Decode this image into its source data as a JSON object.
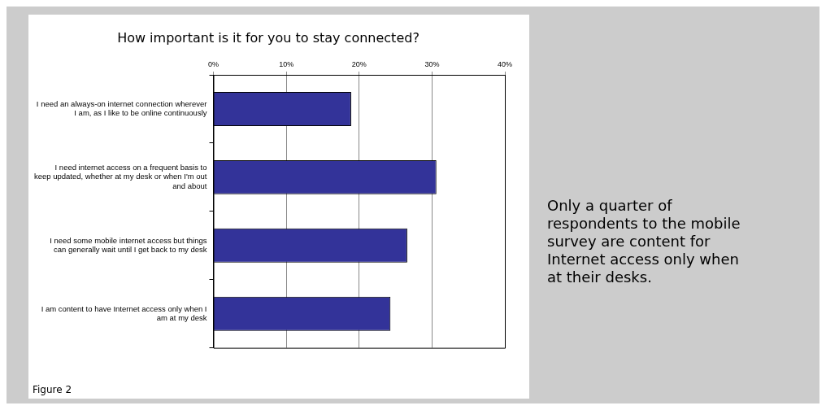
{
  "chart_data": {
    "type": "bar",
    "orientation": "horizontal",
    "title": "How important is it for you to stay connected?",
    "categories": [
      "I need an always-on internet connection wherever I am, as I like to be online continuously",
      "I need internet access on a frequent basis to keep updated, whether at my desk or when I'm out and about",
      "I need some mobile internet access but things can generally wait until I get back to my desk",
      "I am content to have Internet access only when I am at my desk"
    ],
    "values": [
      18.9,
      30.6,
      26.6,
      24.3
    ],
    "color": "#333399",
    "xlim": [
      0,
      40
    ],
    "xticks": [
      {
        "value": 0,
        "label": "0%"
      },
      {
        "value": 10,
        "label": "10%"
      },
      {
        "value": 20,
        "label": "20%"
      },
      {
        "value": 30,
        "label": "30%"
      },
      {
        "value": 40,
        "label": "40%"
      }
    ],
    "grid": "x",
    "legend": false,
    "annotations": [
      "Figure 2",
      "Only a quarter of respondents to the mobile survey are content for Internet access only when at their desks."
    ]
  }
}
